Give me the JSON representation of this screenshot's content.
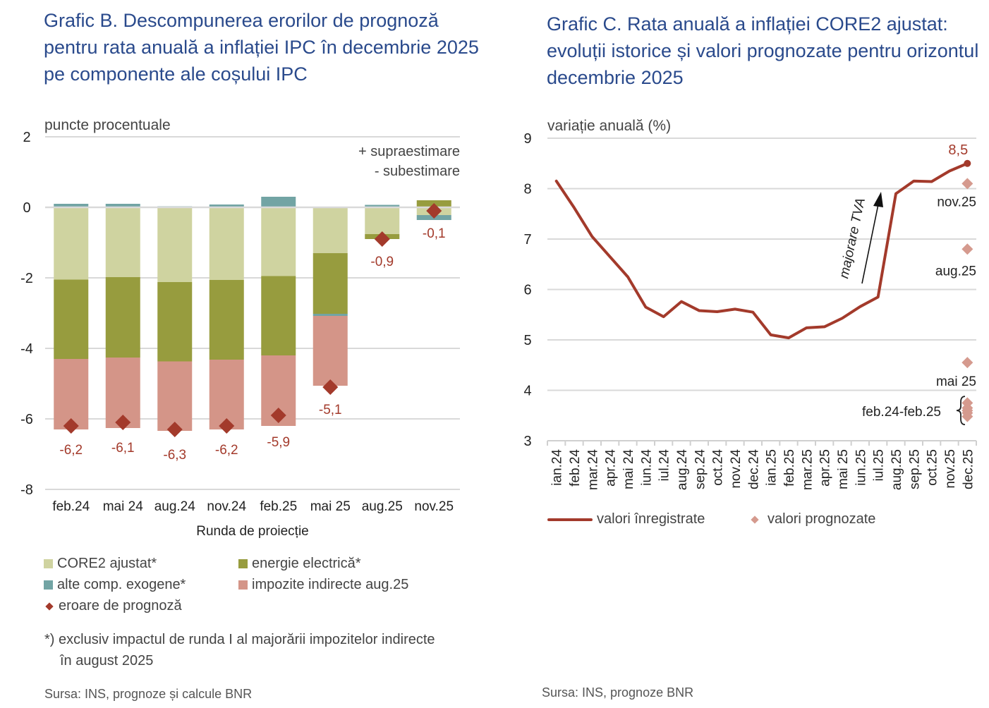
{
  "colors": {
    "title": "#2a4a8c",
    "core2": "#cfd3a0",
    "energie": "#979c3e",
    "alte": "#72a4a4",
    "impozite": "#d49588",
    "eroare": "#a33a2b",
    "line": "#a33a2b",
    "forecast": "#d59a8e",
    "grid": "#d9d9d9"
  },
  "chart_data": [
    {
      "type": "bar",
      "stacked": true,
      "title": "Grafic B. Descompunerea erorilor de prognoză pentru rata anuală a inflației IPC în decembrie 2025 pe componente ale coșului IPC",
      "ylabel": "puncte procentuale",
      "xlabel": "Runda de proiecție",
      "ylim": [
        -8,
        2
      ],
      "yticks": [
        2,
        0,
        -2,
        -4,
        -6,
        -8
      ],
      "grid": true,
      "annotations": [
        "+ supraestimare",
        "- subestimare"
      ],
      "categories": [
        "feb.24",
        "mai 24",
        "aug.24",
        "nov.24",
        "feb.25",
        "mai 25",
        "aug.25",
        "nov.25"
      ],
      "series": [
        {
          "key": "core2",
          "name": "CORE2 ajustat*",
          "values": [
            -2.05,
            -1.98,
            -2.12,
            -2.06,
            -1.95,
            -1.3,
            -0.76,
            -0.22
          ]
        },
        {
          "key": "energie",
          "name": "energie electrică*",
          "values": [
            -2.25,
            -2.28,
            -2.25,
            -2.26,
            -2.25,
            -1.72,
            -0.14,
            0.2
          ]
        },
        {
          "key": "alte",
          "name": "alte comp. exogene*",
          "values": [
            0.1,
            0.1,
            0.03,
            0.08,
            0.3,
            -0.06,
            0.07,
            -0.14
          ]
        },
        {
          "key": "impozite",
          "name": "impozite indirecte aug.25",
          "values": [
            -2.0,
            -2.0,
            -1.97,
            -1.98,
            -2.0,
            -1.98,
            0,
            0
          ]
        }
      ],
      "errors": {
        "name": "eroare de prognoză",
        "values": [
          -6.2,
          -6.1,
          -6.3,
          -6.2,
          -5.9,
          -5.1,
          -0.9,
          -0.1
        ],
        "labels": [
          "-6,2",
          "-6,1",
          "-6,3",
          "-6,2",
          "-5,9",
          "-5,1",
          "-0,9",
          "-0,1"
        ]
      },
      "legend_placement": "bottom",
      "footnote": "*) exclusiv impactul de runda I al majorării impozitelor indirecte în august 2025",
      "source": "Sursa: INS, prognoze și calcule BNR"
    },
    {
      "type": "line",
      "title": "Grafic C. Rata anuală a inflației CORE2 ajustat: evoluții istorice și valori prognozate pentru orizontul decembrie 2025",
      "ylabel": "variație anuală (%)",
      "ylim": [
        3,
        9
      ],
      "yticks": [
        9,
        8,
        7,
        6,
        5,
        4,
        3
      ],
      "grid": true,
      "x": [
        "ian.24",
        "feb.24",
        "mar.24",
        "apr.24",
        "mai 24",
        "iun.24",
        "iul.24",
        "aug.24",
        "sep.24",
        "oct.24",
        "nov.24",
        "dec.24",
        "ian.25",
        "feb.25",
        "mar.25",
        "apr.25",
        "mai 25",
        "iun.25",
        "iul.25",
        "aug.25",
        "sep.25",
        "oct.25",
        "nov.25",
        "dec.25"
      ],
      "series": [
        {
          "name": "valori înregistrate",
          "values": [
            8.15,
            7.62,
            7.05,
            6.65,
            6.25,
            5.65,
            5.46,
            5.76,
            5.58,
            5.56,
            5.61,
            5.55,
            5.1,
            5.04,
            5.24,
            5.26,
            5.43,
            5.66,
            5.85,
            7.9,
            8.15,
            8.14,
            8.35,
            8.5
          ]
        }
      ],
      "end_label": "8,5",
      "forecasts": {
        "name": "valori prognozate",
        "x": "dec.25",
        "points": [
          {
            "round": "nov.25",
            "value": 8.1
          },
          {
            "round": "aug.25",
            "value": 6.8
          },
          {
            "round": "mai 25",
            "value": 4.55
          },
          {
            "round": "feb.25",
            "value": 3.75
          },
          {
            "round": "nov.24",
            "value": 3.65
          },
          {
            "round": "aug.24",
            "value": 3.55
          },
          {
            "round": "mai 24",
            "value": 3.48
          },
          {
            "round": "feb.24",
            "value": 3.6
          }
        ],
        "labels": {
          "nov": "nov.25",
          "aug": "aug.25",
          "mai": "mai 25",
          "group": "feb.24-feb.25"
        }
      },
      "arrow_annotation": "majorare TVA",
      "legend_placement": "bottom-left",
      "source": "Sursa: INS, prognoze BNR"
    }
  ]
}
